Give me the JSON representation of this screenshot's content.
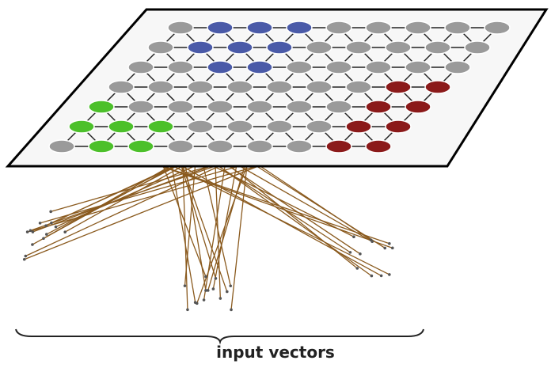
{
  "label": "input vectors"
}
